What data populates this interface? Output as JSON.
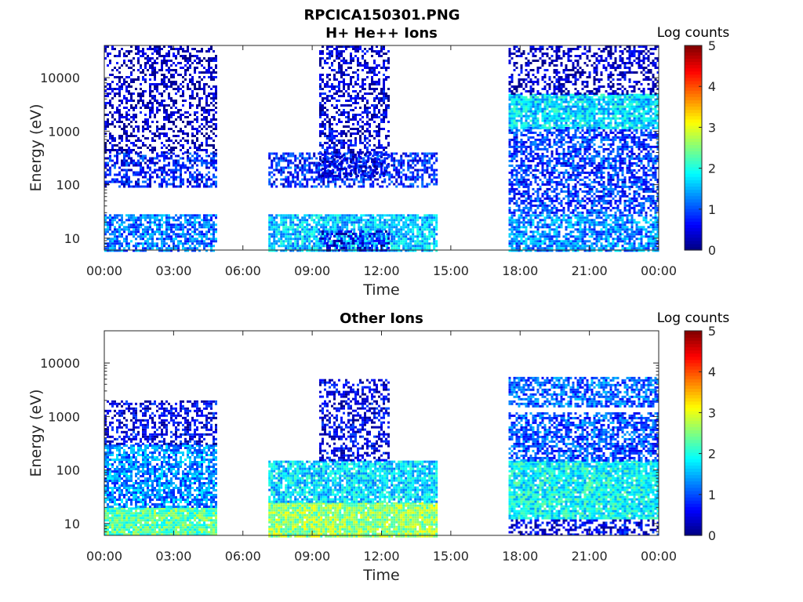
{
  "figure": {
    "title_line1": "RPCICA150301.PNG"
  },
  "chart_data": [
    {
      "type": "heatmap",
      "title": "H+ He++ Ions",
      "xlabel": "Time",
      "ylabel": "Energy (eV)",
      "x_ticks": [
        "00:00",
        "03:00",
        "06:00",
        "09:00",
        "12:00",
        "15:00",
        "18:00",
        "21:00",
        "00:00"
      ],
      "x_range_hours": [
        0,
        24
      ],
      "y_scale": "log",
      "y_ticks": [
        "10",
        "100",
        "1000",
        "10000"
      ],
      "y_tick_values": [
        10,
        100,
        1000,
        10000
      ],
      "y_range": [
        6,
        40000
      ],
      "colorbar": {
        "label": "Log counts",
        "ticks": [
          "0",
          "1",
          "2",
          "3",
          "4",
          "5"
        ],
        "range": [
          0,
          5
        ],
        "colormap": "jet"
      },
      "data_gaps_hours": [
        [
          4.8,
          7.1
        ],
        [
          14.35,
          17.5
        ]
      ],
      "regions": [
        {
          "t": [
            0,
            4.8
          ],
          "e": [
            6,
            28
          ],
          "level": 1.2
        },
        {
          "t": [
            0,
            4.8
          ],
          "e": [
            95,
            400
          ],
          "level": 0.7
        },
        {
          "t": [
            0,
            4.8
          ],
          "e": [
            400,
            40000
          ],
          "level": 0.25
        },
        {
          "t": [
            7.1,
            14.35
          ],
          "e": [
            6,
            28
          ],
          "level": 1.6
        },
        {
          "t": [
            9.3,
            12.3
          ],
          "e": [
            6,
            14
          ],
          "level": 0.6
        },
        {
          "t": [
            7.1,
            14.35
          ],
          "e": [
            95,
            400
          ],
          "level": 0.8
        },
        {
          "t": [
            9.3,
            12.3
          ],
          "e": [
            150,
            700
          ],
          "level": 0.5
        },
        {
          "t": [
            9.3,
            12.3
          ],
          "e": [
            700,
            40000
          ],
          "level": 0.4
        },
        {
          "t": [
            17.5,
            24
          ],
          "e": [
            6,
            28
          ],
          "level": 1.3
        },
        {
          "t": [
            17.5,
            24
          ],
          "e": [
            30,
            1200
          ],
          "level": 0.9
        },
        {
          "t": [
            17.5,
            24
          ],
          "e": [
            1200,
            5000
          ],
          "level": 1.7
        },
        {
          "t": [
            17.5,
            24
          ],
          "e": [
            5000,
            40000
          ],
          "level": 0.3
        }
      ]
    },
    {
      "type": "heatmap",
      "title": "Other Ions",
      "xlabel": "Time",
      "ylabel": "Energy (eV)",
      "x_ticks": [
        "00:00",
        "03:00",
        "06:00",
        "09:00",
        "12:00",
        "15:00",
        "18:00",
        "21:00",
        "00:00"
      ],
      "x_range_hours": [
        0,
        24
      ],
      "y_scale": "log",
      "y_ticks": [
        "10",
        "100",
        "1000",
        "10000"
      ],
      "y_tick_values": [
        10,
        100,
        1000,
        10000
      ],
      "y_range": [
        6,
        40000
      ],
      "colorbar": {
        "label": "Log counts",
        "ticks": [
          "0",
          "1",
          "2",
          "3",
          "4",
          "5"
        ],
        "range": [
          0,
          5
        ],
        "colormap": "jet"
      },
      "data_gaps_hours": [
        [
          4.8,
          7.1
        ],
        [
          14.35,
          17.5
        ]
      ],
      "regions": [
        {
          "t": [
            0,
            4.8
          ],
          "e": [
            6,
            20
          ],
          "level": 2.3
        },
        {
          "t": [
            0,
            4.8
          ],
          "e": [
            20,
            300
          ],
          "level": 1.3
        },
        {
          "t": [
            0,
            4.8
          ],
          "e": [
            300,
            2000
          ],
          "level": 0.5
        },
        {
          "t": [
            7.1,
            14.35
          ],
          "e": [
            6,
            25
          ],
          "level": 2.6
        },
        {
          "t": [
            7.1,
            14.35
          ],
          "e": [
            25,
            150
          ],
          "level": 1.7
        },
        {
          "t": [
            9.3,
            12.3
          ],
          "e": [
            150,
            5000
          ],
          "level": 0.5
        },
        {
          "t": [
            17.5,
            24
          ],
          "e": [
            6,
            12
          ],
          "level": 0.5
        },
        {
          "t": [
            17.5,
            24
          ],
          "e": [
            12,
            150
          ],
          "level": 1.9
        },
        {
          "t": [
            17.5,
            24
          ],
          "e": [
            150,
            1200
          ],
          "level": 1.0
        },
        {
          "t": [
            17.5,
            24
          ],
          "e": [
            1500,
            5500
          ],
          "level": 1.1
        }
      ]
    }
  ],
  "colors": {
    "axis": "#262626",
    "background": "#ffffff"
  }
}
